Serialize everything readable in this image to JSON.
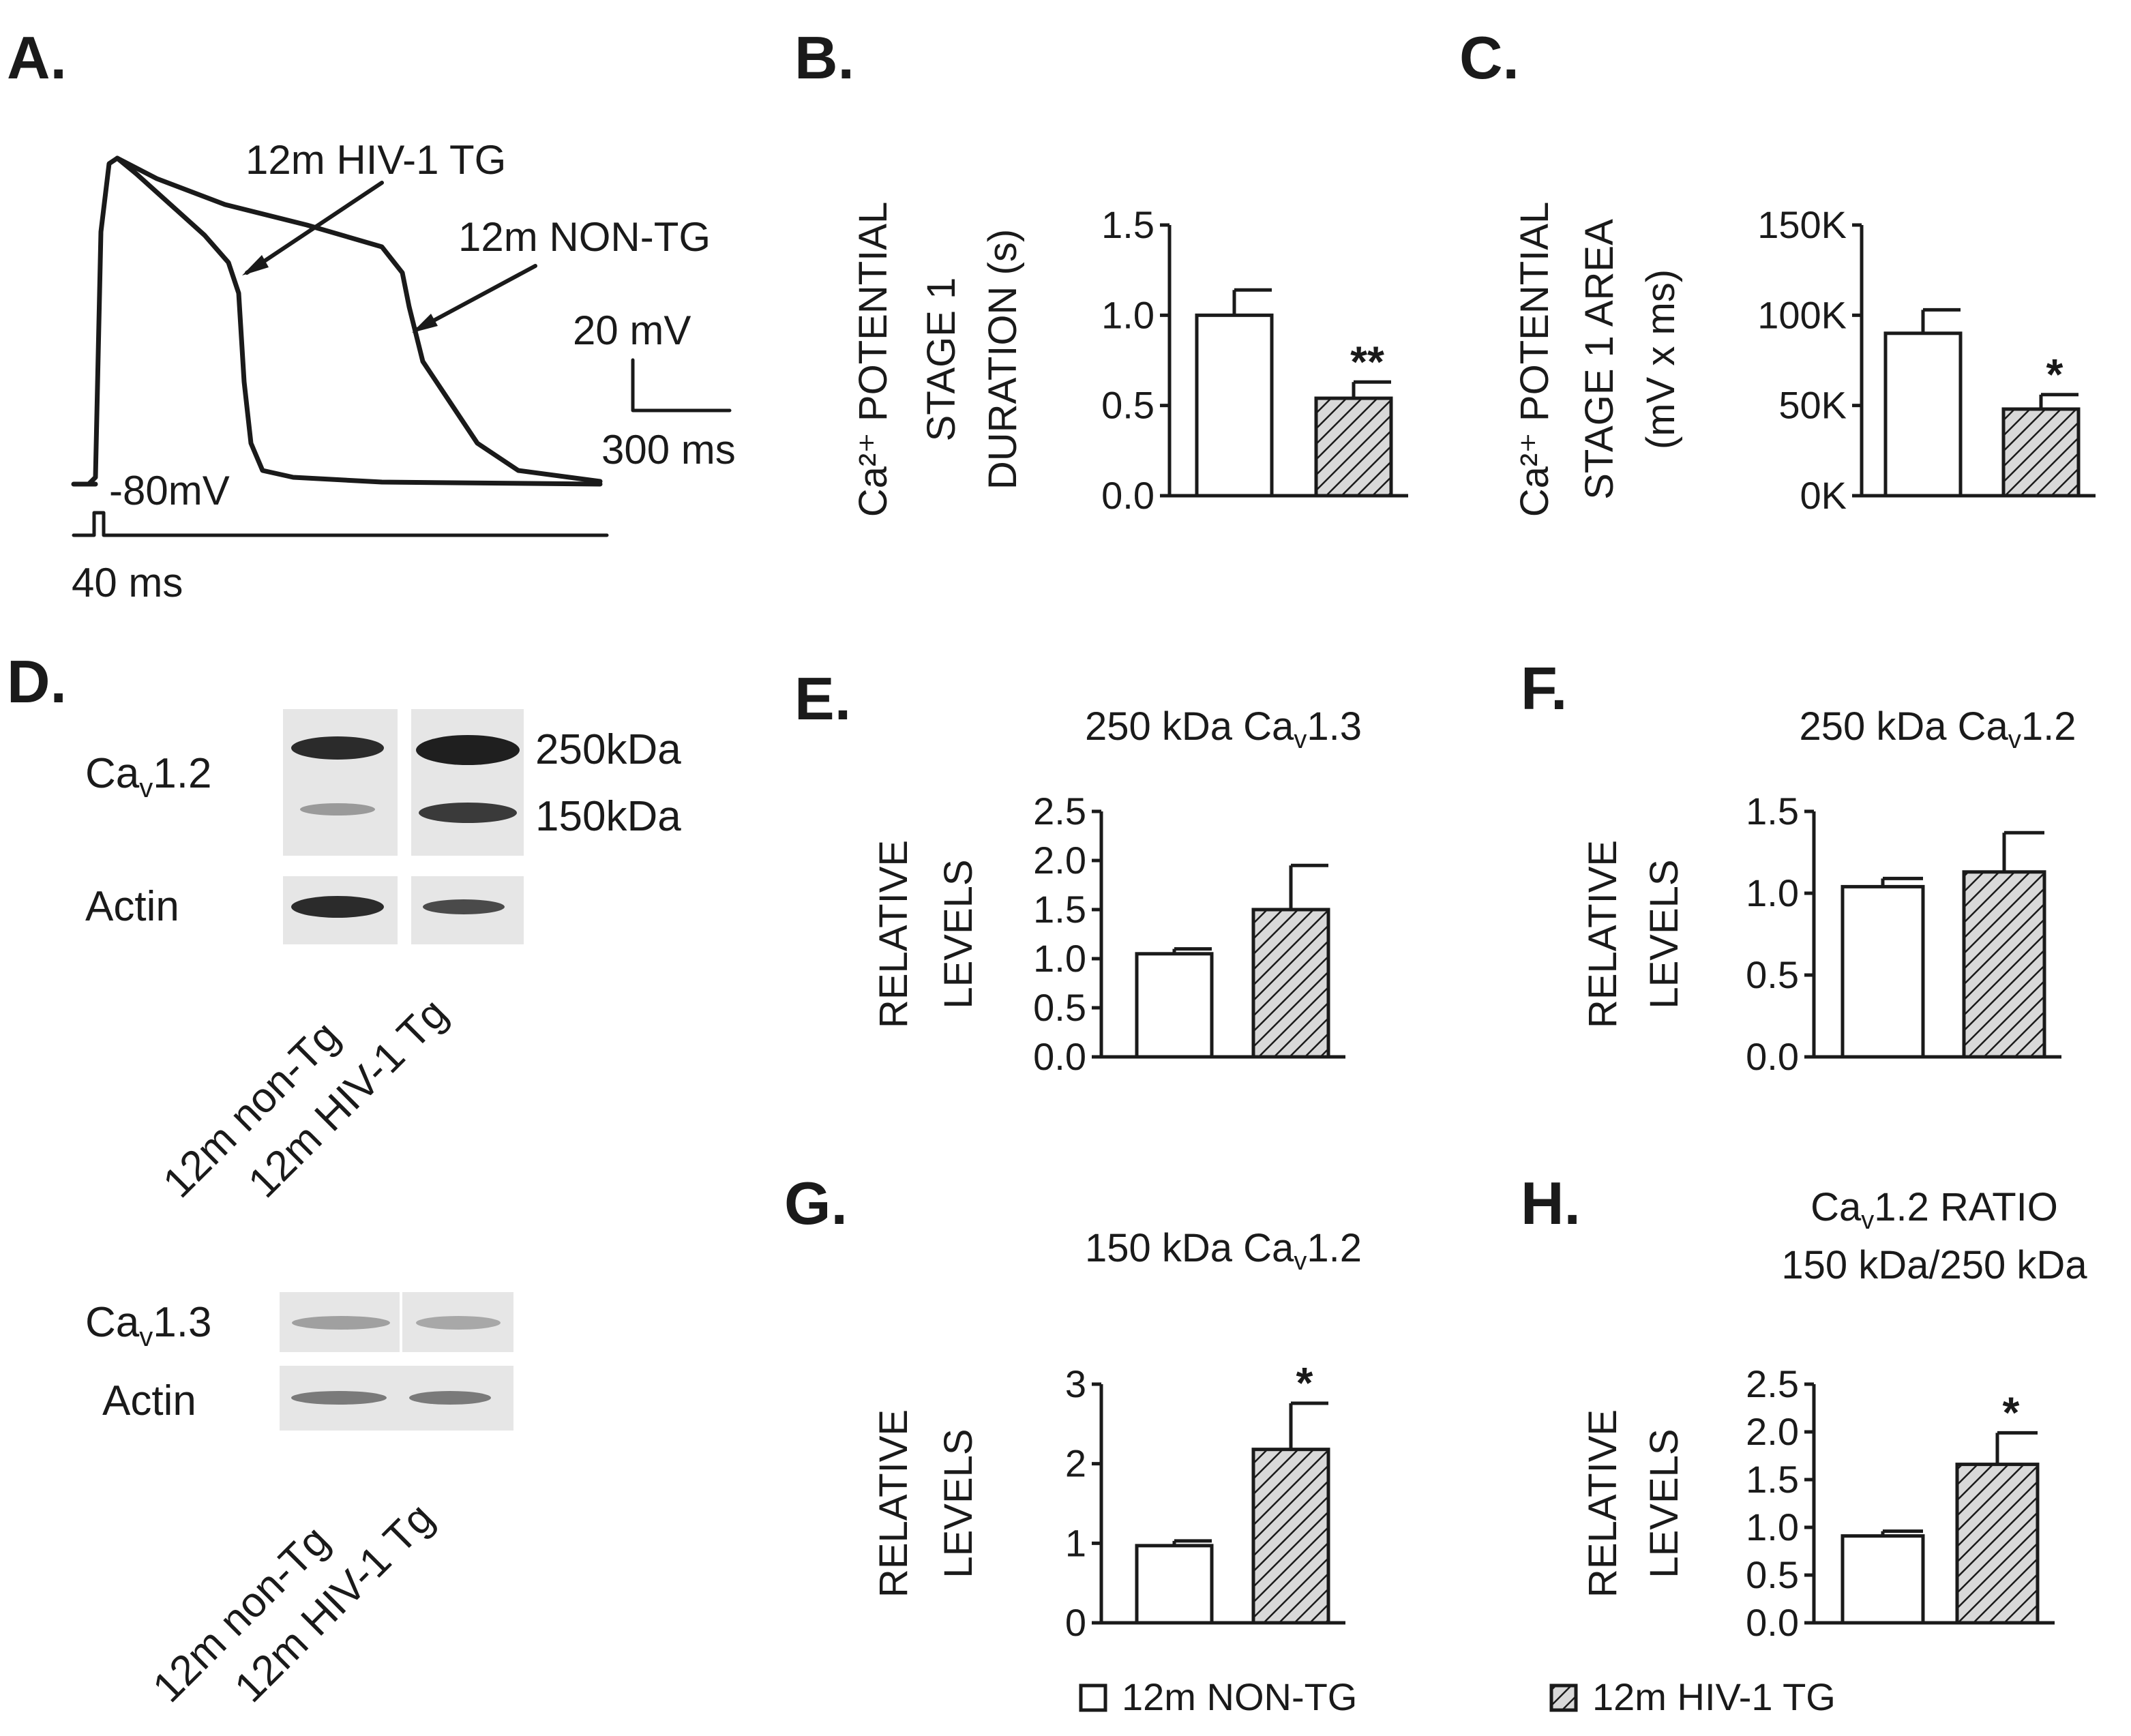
{
  "panel_labels": {
    "A": "A.",
    "B": "B.",
    "C": "C.",
    "D": "D.",
    "E": "E.",
    "F": "F.",
    "G": "G.",
    "H": "H."
  },
  "panel_a": {
    "trace_tg": "12m HIV-1 TG",
    "trace_nontg": "12m NON-TG",
    "scale_mv": "20 mV",
    "scale_ms": "300 ms",
    "rest": "-80mV",
    "stim": "40 ms"
  },
  "panel_d": {
    "blot1_top_label_main": "Ca",
    "blot1_top_label_sub": "v",
    "blot1_top_label_rest": "1.2",
    "blot1_kda_high": "250kDa",
    "blot1_kda_low": "150kDa",
    "blot1_loading": "Actin",
    "lane1": "12m non-Tg",
    "lane2": "12m HIV-1 Tg",
    "blot2_label_main": "Ca",
    "blot2_label_sub": "v",
    "blot2_label_rest": "1.3",
    "blot2_loading": "Actin"
  },
  "legend": {
    "series1": "12m NON-TG",
    "series2": "12m HIV-1 TG"
  },
  "colors": {
    "ink": "#1a1a1a",
    "bar1_fill": "#ffffff",
    "bar2_fill": "#d9d9d9",
    "blot_bg": "#e6e6e6",
    "band": "#2b2b2b"
  },
  "chart_data": [
    {
      "panel": "B",
      "type": "bar",
      "title": "",
      "ylabel_lines": [
        "Ca²⁺ POTENTIAL",
        "STAGE 1",
        "DURATION (s)"
      ],
      "categories": [
        "12m NON-TG",
        "12m HIV-1 TG"
      ],
      "series": [
        {
          "values": [
            1.0,
            0.54
          ]
        }
      ],
      "errors": [
        0.14,
        0.09
      ],
      "significance": [
        "",
        "**"
      ],
      "ylim": [
        0,
        1.5
      ],
      "yticks": [
        "0.0",
        "0.5",
        "1.0",
        "1.5"
      ]
    },
    {
      "panel": "C",
      "type": "bar",
      "title": "",
      "ylabel_lines": [
        "Ca²⁺ POTENTIAL",
        "STAGE 1 AREA",
        "(mV x ms)"
      ],
      "categories": [
        "12m NON-TG",
        "12m HIV-1 TG"
      ],
      "series": [
        {
          "values": [
            90000,
            48000
          ]
        }
      ],
      "errors": [
        13000,
        8000
      ],
      "significance": [
        "",
        "*"
      ],
      "ylim": [
        0,
        150000
      ],
      "yticks": [
        "0K",
        "50K",
        "100K",
        "150K"
      ]
    },
    {
      "panel": "E",
      "type": "bar",
      "title": "250 kDa Caᵥ1.3",
      "ylabel_lines": [
        "RELATIVE",
        "LEVELS"
      ],
      "categories": [
        "12m NON-TG",
        "12m HIV-1 TG"
      ],
      "series": [
        {
          "values": [
            1.05,
            1.5
          ]
        }
      ],
      "errors": [
        0.05,
        0.45
      ],
      "significance": [
        "",
        ""
      ],
      "ylim": [
        0,
        2.5
      ],
      "yticks": [
        "0.0",
        "0.5",
        "1.0",
        "1.5",
        "2.0",
        "2.5"
      ]
    },
    {
      "panel": "F",
      "type": "bar",
      "title": "250 kDa Caᵥ1.2",
      "ylabel_lines": [
        "RELATIVE",
        "LEVELS"
      ],
      "categories": [
        "12m NON-TG",
        "12m HIV-1 TG"
      ],
      "series": [
        {
          "values": [
            1.04,
            1.13
          ]
        }
      ],
      "errors": [
        0.05,
        0.24
      ],
      "significance": [
        "",
        ""
      ],
      "ylim": [
        0,
        1.5
      ],
      "yticks": [
        "0.0",
        "0.5",
        "1.0",
        "1.5"
      ]
    },
    {
      "panel": "G",
      "type": "bar",
      "title": "150 kDa Caᵥ1.2",
      "ylabel_lines": [
        "RELATIVE",
        "LEVELS"
      ],
      "categories": [
        "12m NON-TG",
        "12m HIV-1 TG"
      ],
      "series": [
        {
          "values": [
            0.97,
            2.18
          ]
        }
      ],
      "errors": [
        0.06,
        0.58
      ],
      "significance": [
        "",
        "*"
      ],
      "ylim": [
        0,
        3
      ],
      "yticks": [
        "0",
        "1",
        "2",
        "3"
      ]
    },
    {
      "panel": "H",
      "type": "bar",
      "title": "Caᵥ1.2 RATIO",
      "subtitle": "150 kDa/250 kDa",
      "ylabel_lines": [
        "RELATIVE",
        "LEVELS"
      ],
      "categories": [
        "12m NON-TG",
        "12m HIV-1 TG"
      ],
      "series": [
        {
          "values": [
            0.91,
            1.66
          ]
        }
      ],
      "errors": [
        0.05,
        0.33
      ],
      "significance": [
        "",
        "*"
      ],
      "ylim": [
        0,
        2.5
      ],
      "yticks": [
        "0.0",
        "0.5",
        "1.0",
        "1.5",
        "2.0",
        "2.5"
      ]
    }
  ]
}
